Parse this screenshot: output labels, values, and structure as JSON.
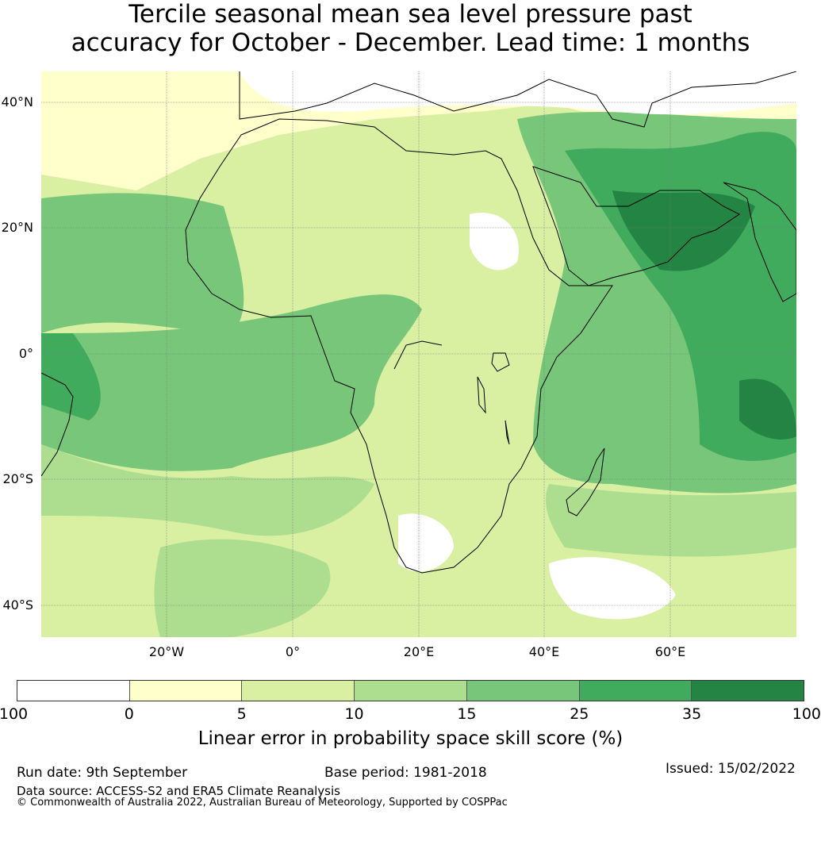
{
  "title_line1": "Tercile seasonal mean sea level pressure past",
  "title_line2": "accuracy for October - December. Lead time: 1 months",
  "map": {
    "lat_labels": [
      "40°N",
      "20°N",
      "0°",
      "20°S",
      "40°S"
    ],
    "lon_labels": [
      "20°W",
      "0°",
      "20°E",
      "40°E",
      "60°E"
    ],
    "region": "Africa / Indian Ocean",
    "gridlines": true
  },
  "colorbar": {
    "bounds": [
      "-100",
      "0",
      "5",
      "10",
      "15",
      "25",
      "35",
      "100"
    ],
    "colors": [
      "#ffffff",
      "#ffffcc",
      "#d9f0a3",
      "#addd8e",
      "#78c679",
      "#41ab5d",
      "#238443"
    ],
    "label": "Linear error in probability space skill score (%)"
  },
  "footer": {
    "run_date": "Run date: 9th September",
    "base_period": "Base period: 1981-2018",
    "issued": "Issued: 15/02/2022",
    "data_source": "Data source: ACCESS-S2 and ERA5 Climate Reanalysis",
    "copyright": "© Commonwealth of Australia 2022, Australian Bureau of Meteorology, Supported by COSPPac"
  }
}
